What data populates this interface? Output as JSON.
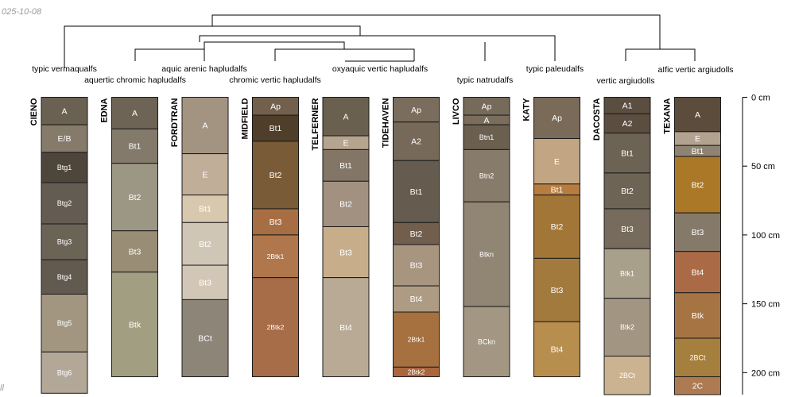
{
  "date_stamp": "025-10-08",
  "corner_note": "ll",
  "depth_axis": {
    "unit": "cm",
    "max_depth_cm": 205,
    "ticks": [
      {
        "value": 0,
        "label": "0 cm"
      },
      {
        "value": 50,
        "label": "50 cm"
      },
      {
        "value": 100,
        "label": "100 cm"
      },
      {
        "value": 150,
        "label": "150 cm"
      },
      {
        "value": 200,
        "label": "200 cm"
      }
    ]
  },
  "taxonomy_labels": [
    {
      "text": "typic vermaqualfs"
    },
    {
      "text": "aquertic chromic hapludalfs"
    },
    {
      "text": "aquic arenic hapludalfs"
    },
    {
      "text": "chromic vertic hapludalfs"
    },
    {
      "text": "oxyaquic vertic hapludalfs"
    },
    {
      "text": "typic natrudalfs"
    },
    {
      "text": "typic paleudalfs"
    },
    {
      "text": "vertic argiudolls"
    },
    {
      "text": "aIfic vertic argiudolls"
    }
  ],
  "profiles": [
    {
      "name": "CIENO",
      "horizons": [
        {
          "name": "A",
          "top": 0,
          "bottom": 20,
          "color": "#6b6152"
        },
        {
          "name": "E/B",
          "top": 20,
          "bottom": 40,
          "color": "#867a6b"
        },
        {
          "name": "Btg1",
          "top": 40,
          "bottom": 62,
          "color": "#4f463b"
        },
        {
          "name": "Btg2",
          "top": 62,
          "bottom": 92,
          "color": "#645c52"
        },
        {
          "name": "Btg3",
          "top": 92,
          "bottom": 118,
          "color": "#6c6357"
        },
        {
          "name": "Btg4",
          "top": 118,
          "bottom": 143,
          "color": "#625a4f"
        },
        {
          "name": "Btg5",
          "top": 143,
          "bottom": 185,
          "color": "#a39681"
        },
        {
          "name": "Btg6",
          "top": 185,
          "bottom": 215,
          "color": "#b3a898"
        }
      ]
    },
    {
      "name": "EDNA",
      "horizons": [
        {
          "name": "A",
          "top": 0,
          "bottom": 23,
          "color": "#6d6455"
        },
        {
          "name": "Bt1",
          "top": 23,
          "bottom": 48,
          "color": "#847a6c"
        },
        {
          "name": "Bt2",
          "top": 48,
          "bottom": 97,
          "color": "#9c9685"
        },
        {
          "name": "Bt3",
          "top": 97,
          "bottom": 127,
          "color": "#998d75"
        },
        {
          "name": "Btk",
          "top": 127,
          "bottom": 203,
          "color": "#a29e82"
        }
      ]
    },
    {
      "name": "FORDTRAN",
      "horizons": [
        {
          "name": "A",
          "top": 0,
          "bottom": 41,
          "color": "#a39482"
        },
        {
          "name": "E",
          "top": 41,
          "bottom": 71,
          "color": "#c0ae99"
        },
        {
          "name": "Bt1",
          "top": 71,
          "bottom": 91,
          "color": "#d8c8ae"
        },
        {
          "name": "Bt2",
          "top": 91,
          "bottom": 122,
          "color": "#d0c6b6"
        },
        {
          "name": "Bt3",
          "top": 122,
          "bottom": 147,
          "color": "#d2c7b7"
        },
        {
          "name": "BCt",
          "top": 147,
          "bottom": 203,
          "color": "#8e8579"
        }
      ]
    },
    {
      "name": "MIDFIELD",
      "horizons": [
        {
          "name": "Ap",
          "top": 0,
          "bottom": 13,
          "color": "#72604c"
        },
        {
          "name": "Bt1",
          "top": 13,
          "bottom": 32,
          "color": "#4e3e2a"
        },
        {
          "name": "Bt2",
          "top": 32,
          "bottom": 81,
          "color": "#795b37"
        },
        {
          "name": "Bt3",
          "top": 81,
          "bottom": 100,
          "color": "#a76e43"
        },
        {
          "name": "2Btk1",
          "top": 100,
          "bottom": 131,
          "color": "#b0764c"
        },
        {
          "name": "2Btk2",
          "top": 131,
          "bottom": 203,
          "color": "#a76c48"
        }
      ]
    },
    {
      "name": "TELFERNER",
      "horizons": [
        {
          "name": "A",
          "top": 0,
          "bottom": 28,
          "color": "#6a604f"
        },
        {
          "name": "E",
          "top": 28,
          "bottom": 38,
          "color": "#b5a48e"
        },
        {
          "name": "Bt1",
          "top": 38,
          "bottom": 61,
          "color": "#837667"
        },
        {
          "name": "Bt2",
          "top": 61,
          "bottom": 94,
          "color": "#a29180"
        },
        {
          "name": "Bt3",
          "top": 94,
          "bottom": 131,
          "color": "#c8ad8b"
        },
        {
          "name": "Bt4",
          "top": 131,
          "bottom": 203,
          "color": "#b9aa96"
        }
      ]
    },
    {
      "name": "TIDEHAVEN",
      "horizons": [
        {
          "name": "Ap",
          "top": 0,
          "bottom": 18,
          "color": "#7b6d5d"
        },
        {
          "name": "A2",
          "top": 18,
          "bottom": 46,
          "color": "#766959"
        },
        {
          "name": "Bt1",
          "top": 46,
          "bottom": 91,
          "color": "#655b4f"
        },
        {
          "name": "Bt2",
          "top": 91,
          "bottom": 107,
          "color": "#715e4c"
        },
        {
          "name": "Bt3",
          "top": 107,
          "bottom": 137,
          "color": "#a79580"
        },
        {
          "name": "Bt4",
          "top": 137,
          "bottom": 156,
          "color": "#ad9b84"
        },
        {
          "name": "2Btk1",
          "top": 156,
          "bottom": 196,
          "color": "#a6703f"
        },
        {
          "name": "2Btk2",
          "top": 196,
          "bottom": 203,
          "color": "#aa673f"
        }
      ]
    },
    {
      "name": "LIVCO",
      "horizons": [
        {
          "name": "Ap",
          "top": 0,
          "bottom": 13,
          "color": "#766a5b"
        },
        {
          "name": "A",
          "top": 13,
          "bottom": 20,
          "color": "#7a6d5c"
        },
        {
          "name": "Btn1",
          "top": 20,
          "bottom": 38,
          "color": "#6b6050"
        },
        {
          "name": "Btn2",
          "top": 38,
          "bottom": 76,
          "color": "#877b6b"
        },
        {
          "name": "Btkn",
          "top": 76,
          "bottom": 152,
          "color": "#918573"
        },
        {
          "name": "BCkn",
          "top": 152,
          "bottom": 203,
          "color": "#a39683"
        }
      ]
    },
    {
      "name": "KATY",
      "horizons": [
        {
          "name": "Ap",
          "top": 0,
          "bottom": 30,
          "color": "#7a6a58"
        },
        {
          "name": "E",
          "top": 30,
          "bottom": 63,
          "color": "#c2a683"
        },
        {
          "name": "Bt1",
          "top": 63,
          "bottom": 71,
          "color": "#b77d40"
        },
        {
          "name": "Bt2",
          "top": 71,
          "bottom": 117,
          "color": "#a17637"
        },
        {
          "name": "Bt3",
          "top": 117,
          "bottom": 163,
          "color": "#a27a3e"
        },
        {
          "name": "Bt4",
          "top": 163,
          "bottom": 203,
          "color": "#b88e4f"
        }
      ]
    },
    {
      "name": "DACOSTA",
      "horizons": [
        {
          "name": "A1",
          "top": 0,
          "bottom": 12,
          "color": "#5a4e41"
        },
        {
          "name": "A2",
          "top": 12,
          "bottom": 26,
          "color": "#5b4e40"
        },
        {
          "name": "Bt1",
          "top": 26,
          "bottom": 55,
          "color": "#6c6355"
        },
        {
          "name": "Bt2",
          "top": 55,
          "bottom": 81,
          "color": "#6d6456"
        },
        {
          "name": "Bt3",
          "top": 81,
          "bottom": 110,
          "color": "#766b5c"
        },
        {
          "name": "Btk1",
          "top": 110,
          "bottom": 146,
          "color": "#a9a08c"
        },
        {
          "name": "Btk2",
          "top": 146,
          "bottom": 188,
          "color": "#a29683"
        },
        {
          "name": "2BCt",
          "top": 188,
          "bottom": 216,
          "color": "#cbb290"
        }
      ]
    },
    {
      "name": "TEXANA",
      "horizons": [
        {
          "name": "A",
          "top": 0,
          "bottom": 25,
          "color": "#5b4c3c"
        },
        {
          "name": "E",
          "top": 25,
          "bottom": 35,
          "color": "#b2a290"
        },
        {
          "name": "Bt1",
          "top": 35,
          "bottom": 43,
          "color": "#8f8373"
        },
        {
          "name": "Bt2",
          "top": 43,
          "bottom": 84,
          "color": "#ab7827"
        },
        {
          "name": "Bt3",
          "top": 84,
          "bottom": 112,
          "color": "#857a6a"
        },
        {
          "name": "Bt4",
          "top": 112,
          "bottom": 142,
          "color": "#ab6a46"
        },
        {
          "name": "Btk",
          "top": 142,
          "bottom": 175,
          "color": "#a67443"
        },
        {
          "name": "2BCt",
          "top": 175,
          "bottom": 203,
          "color": "#a57f3e"
        },
        {
          "name": "2C",
          "top": 203,
          "bottom": 220,
          "color": "#ae7a52"
        }
      ]
    }
  ]
}
